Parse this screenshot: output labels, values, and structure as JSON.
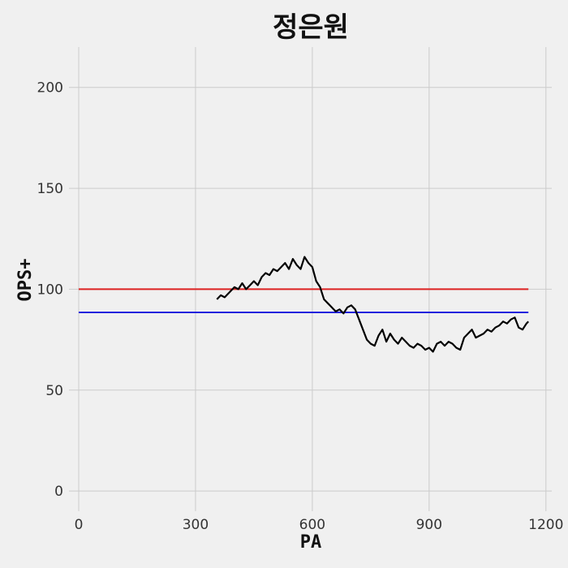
{
  "chart_data": {
    "type": "line",
    "title": "정은원",
    "xlabel": "PA",
    "ylabel": "OPS+",
    "xlim": [
      -25,
      1215
    ],
    "ylim": [
      -10,
      220
    ],
    "xticks": [
      0,
      300,
      600,
      900,
      1200
    ],
    "yticks": [
      0,
      50,
      100,
      150,
      200
    ],
    "grid": true,
    "background": "#f0f0f0",
    "series": [
      {
        "color": "#000000",
        "x": [
          355,
          365,
          375,
          390,
          400,
          410,
          420,
          430,
          440,
          450,
          460,
          470,
          480,
          490,
          500,
          510,
          520,
          530,
          540,
          550,
          560,
          570,
          580,
          590,
          600,
          610,
          620,
          630,
          640,
          650,
          660,
          670,
          680,
          690,
          700,
          710,
          720,
          730,
          740,
          750,
          760,
          770,
          780,
          790,
          800,
          810,
          820,
          830,
          840,
          850,
          860,
          870,
          880,
          890,
          900,
          910,
          920,
          930,
          940,
          950,
          960,
          970,
          980,
          990,
          1000,
          1010,
          1020,
          1030,
          1040,
          1050,
          1060,
          1070,
          1080,
          1090,
          1100,
          1110,
          1120,
          1130,
          1140,
          1150,
          1155
        ],
        "y": [
          95,
          97,
          96,
          99,
          101,
          100,
          103,
          100,
          102,
          104,
          102,
          106,
          108,
          107,
          110,
          109,
          111,
          113,
          110,
          115,
          112,
          110,
          116,
          113,
          111,
          104,
          101,
          95,
          93,
          91,
          89,
          90,
          88,
          91,
          92,
          90,
          85,
          80,
          75,
          73,
          72,
          77,
          80,
          74,
          78,
          75,
          73,
          76,
          74,
          72,
          71,
          73,
          72,
          70,
          71,
          69,
          73,
          74,
          72,
          74,
          73,
          71,
          70,
          76,
          78,
          80,
          76,
          77,
          78,
          80,
          79,
          81,
          82,
          84,
          83,
          85,
          86,
          81,
          80,
          83,
          84
        ]
      }
    ],
    "reference_lines": [
      {
        "y": 100,
        "x_range": [
          0,
          1155
        ],
        "color": "#dd2222"
      },
      {
        "y": 88.5,
        "x_range": [
          0,
          1155
        ],
        "color": "#2222dd"
      }
    ]
  }
}
